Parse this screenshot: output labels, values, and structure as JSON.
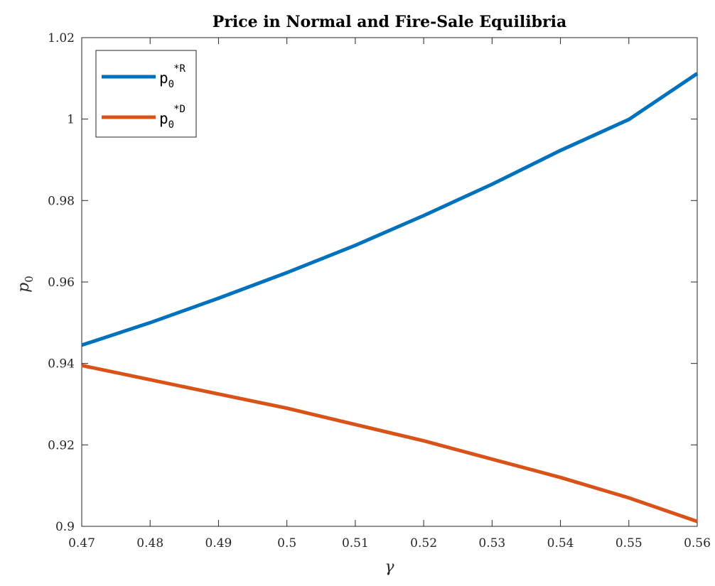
{
  "chart_data": {
    "type": "line",
    "title": "Price in Normal and Fire-Sale Equilibria",
    "xlabel": "γ",
    "ylabel": "p",
    "ylabel_sub": "0",
    "xlim": [
      0.47,
      0.56
    ],
    "ylim": [
      0.9,
      1.02
    ],
    "xticks": [
      0.47,
      0.48,
      0.49,
      0.5,
      0.51,
      0.52,
      0.53,
      0.54,
      0.55,
      0.56
    ],
    "xtick_labels": [
      "0.47",
      "0.48",
      "0.49",
      "0.5",
      "0.51",
      "0.52",
      "0.53",
      "0.54",
      "0.55",
      "0.56"
    ],
    "yticks": [
      0.9,
      0.92,
      0.94,
      0.96,
      0.98,
      1.0,
      1.02
    ],
    "ytick_labels": [
      "0.9",
      "0.92",
      "0.94",
      "0.96",
      "0.98",
      "1",
      "1.02"
    ],
    "grid": false,
    "legend_position": "top-left",
    "x": [
      0.47,
      0.48,
      0.49,
      0.5,
      0.51,
      0.52,
      0.53,
      0.54,
      0.55,
      0.56
    ],
    "series": [
      {
        "label_main": "p",
        "label_sub": "0",
        "label_sup": "*R",
        "color": "#0072BD",
        "values": [
          0.9445,
          0.95,
          0.956,
          0.9623,
          0.969,
          0.9763,
          0.984,
          0.9923,
          0.9999,
          1.0112
        ]
      },
      {
        "label_main": "p",
        "label_sub": "0",
        "label_sup": "*D",
        "color": "#D95319",
        "values": [
          0.9395,
          0.936,
          0.9325,
          0.929,
          0.925,
          0.921,
          0.9165,
          0.912,
          0.907,
          0.9012
        ]
      }
    ]
  }
}
